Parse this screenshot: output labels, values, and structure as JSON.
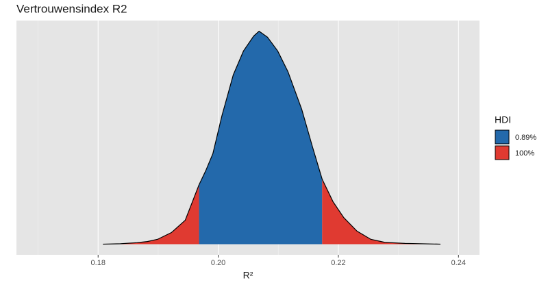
{
  "chart_data": {
    "type": "area",
    "title": "Vertrouwensindex R2",
    "xlabel": "R²",
    "x": [
      0.1808,
      0.1837,
      0.1865,
      0.1882,
      0.1899,
      0.1922,
      0.1945,
      0.1968,
      0.1979,
      0.1991,
      0.2006,
      0.2025,
      0.2042,
      0.2059,
      0.2068,
      0.2082,
      0.2099,
      0.2116,
      0.2139,
      0.2157,
      0.2173,
      0.2191,
      0.2209,
      0.2231,
      0.2254,
      0.2277,
      0.2311,
      0.237
    ],
    "series": [
      {
        "name": "0.89%",
        "color": "#2369ab",
        "values": [
          null,
          null,
          null,
          null,
          null,
          null,
          null,
          15.9,
          19.6,
          24.2,
          34.3,
          45.3,
          51.7,
          55.7,
          57,
          55.4,
          51.7,
          46.2,
          36.1,
          26.0,
          17.4,
          null,
          null,
          null,
          null,
          null,
          null,
          null
        ]
      },
      {
        "name": "100%",
        "color": "#e03a31",
        "values": [
          0,
          0.1,
          0.4,
          0.7,
          1.3,
          3.1,
          6.4,
          15.9,
          null,
          null,
          null,
          null,
          null,
          null,
          null,
          null,
          null,
          null,
          null,
          null,
          17.4,
          11.4,
          7.1,
          3.5,
          1.3,
          0.5,
          0.2,
          0
        ]
      }
    ],
    "xlim": [
      0.1664,
      0.2435
    ],
    "ylim": [
      -2.85,
      59.85
    ],
    "xticks": [
      0.18,
      {
        "value": 0.2,
        "label": "0.20"
      },
      0.22,
      0.24
    ],
    "xminor": [
      0.17,
      0.19,
      0.21,
      0.23
    ],
    "grid": true,
    "legend_title": "HDI",
    "legend_position": "right"
  }
}
